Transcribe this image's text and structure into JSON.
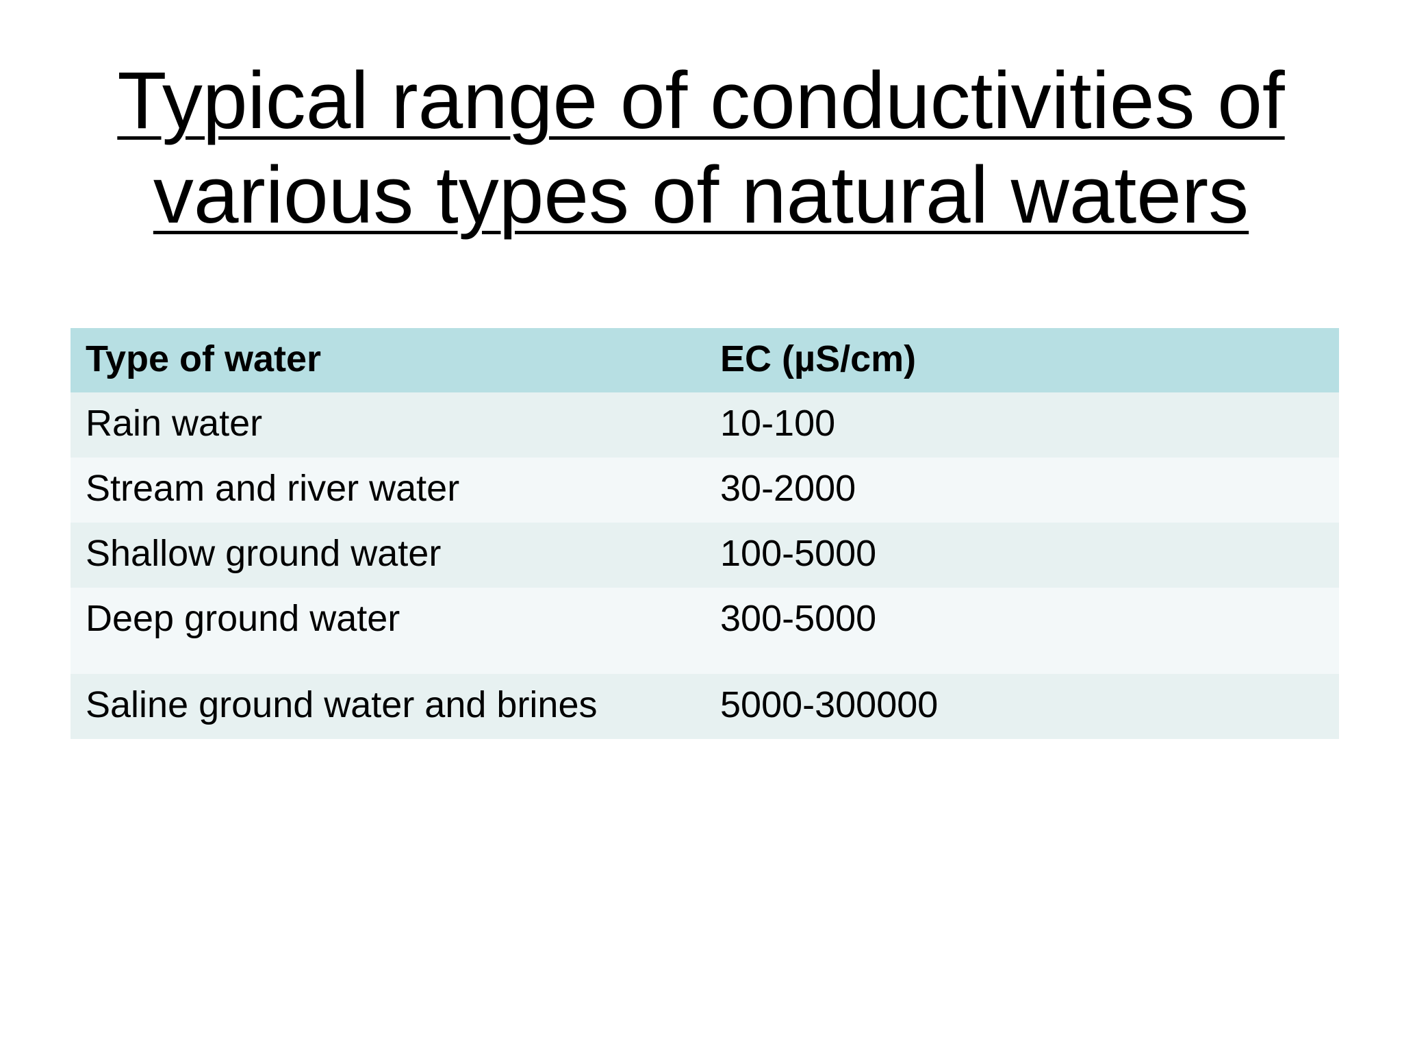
{
  "slide": {
    "title_line1": "Typical range of conductivities of",
    "title_line2": "various types of natural waters"
  },
  "table": {
    "headers": [
      "Type of water",
      "EC (µS/cm)"
    ],
    "rows": [
      [
        "Rain water",
        "10-100"
      ],
      [
        "Stream and river water",
        "30-2000"
      ],
      [
        "Shallow ground water",
        "100-5000"
      ],
      [
        "Deep ground water",
        "300-5000"
      ],
      [
        "Saline ground water and brines",
        "5000-300000"
      ]
    ]
  },
  "colors": {
    "header_bg": "#b7dfe3",
    "row_odd_bg": "#e7f1f1",
    "row_even_bg": "#f3f8f9",
    "text": "#000000"
  }
}
